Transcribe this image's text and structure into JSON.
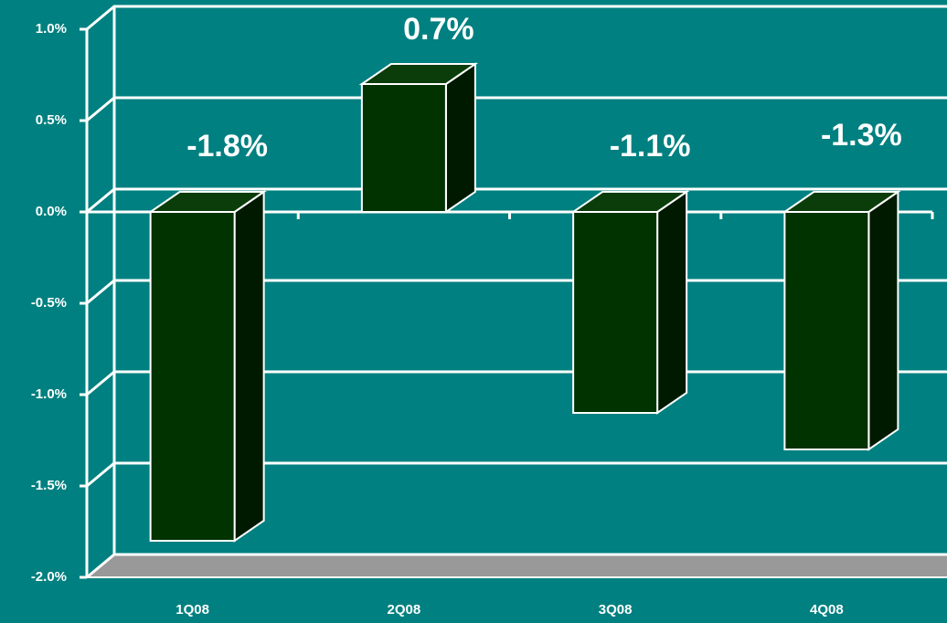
{
  "chart_data": {
    "type": "bar3d",
    "categories": [
      "1Q08",
      "2Q08",
      "3Q08",
      "4Q08"
    ],
    "values": [
      -1.8,
      0.7,
      -1.1,
      -1.3
    ],
    "value_labels": [
      "-1.8%",
      "0.7%",
      "-1.1%",
      "-1.3%"
    ],
    "color": "#003300",
    "ylim": [
      -2.0,
      1.0
    ],
    "yticks": [
      {
        "value": 1.0,
        "label": "1.0%"
      },
      {
        "value": 0.5,
        "label": "0.5%"
      },
      {
        "value": 0.0,
        "label": "0.0%"
      },
      {
        "value": -0.5,
        "label": "-0.5%"
      },
      {
        "value": -1.0,
        "label": "-1.0%"
      },
      {
        "value": -1.5,
        "label": "-1.5%"
      },
      {
        "value": -2.0,
        "label": "-2.0%"
      }
    ],
    "grid": true
  }
}
